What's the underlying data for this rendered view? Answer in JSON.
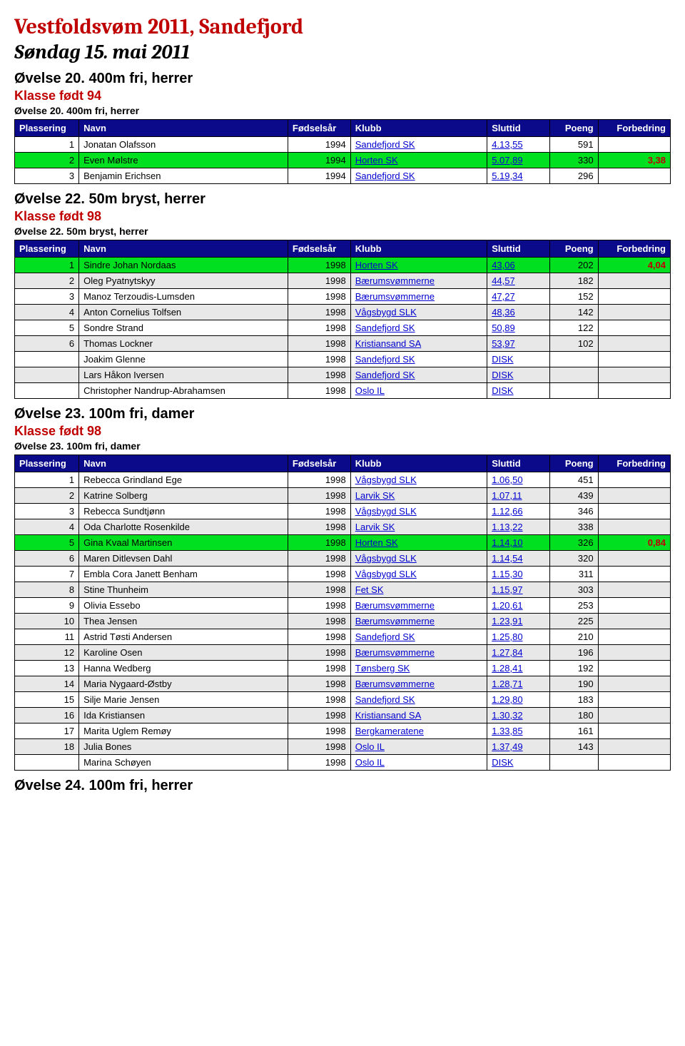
{
  "header": {
    "title": "Vestfoldsvøm 2011, Sandefjord",
    "date": "Søndag 15. mai 2011"
  },
  "columns": {
    "plass": "Plassering",
    "navn": "Navn",
    "year": "Fødselsår",
    "klubb": "Klubb",
    "tid": "Sluttid",
    "poeng": "Poeng",
    "forb": "Forbedring"
  },
  "sections": [
    {
      "event_big": "Øvelse 20. 400m fri, herrer",
      "klasse": "Klasse født 94",
      "event_small": "Øvelse 20. 400m fri, herrer",
      "rows": [
        {
          "plass": "1",
          "navn": "Jonatan Olafsson",
          "year": "1994",
          "klubb": "Sandefjord SK",
          "tid": "4.13,55",
          "poeng": "591",
          "forb": "",
          "hl": false
        },
        {
          "plass": "2",
          "navn": "Even Mølstre",
          "year": "1994",
          "klubb": "Horten SK",
          "tid": "5.07,89",
          "poeng": "330",
          "forb": "3,38",
          "hl": true
        },
        {
          "plass": "3",
          "navn": "Benjamin Erichsen",
          "year": "1994",
          "klubb": "Sandefjord SK",
          "tid": "5.19,34",
          "poeng": "296",
          "forb": "",
          "hl": false
        }
      ]
    },
    {
      "event_big": "Øvelse 22. 50m bryst, herrer",
      "klasse": "Klasse født 98",
      "event_small": "Øvelse 22. 50m bryst, herrer",
      "rows": [
        {
          "plass": "1",
          "navn": "Sindre Johan Nordaas",
          "year": "1998",
          "klubb": "Horten SK",
          "tid": "43,06",
          "poeng": "202",
          "forb": "4,04",
          "hl": true
        },
        {
          "plass": "2",
          "navn": "Oleg Pyatnytskyy",
          "year": "1998",
          "klubb": "Bærumsvømmerne",
          "tid": "44,57",
          "poeng": "182",
          "forb": "",
          "hl": false
        },
        {
          "plass": "3",
          "navn": "Manoz Terzoudis-Lumsden",
          "year": "1998",
          "klubb": "Bærumsvømmerne",
          "tid": "47,27",
          "poeng": "152",
          "forb": "",
          "hl": false
        },
        {
          "plass": "4",
          "navn": "Anton Cornelius Tolfsen",
          "year": "1998",
          "klubb": "Vågsbygd SLK",
          "tid": "48,36",
          "poeng": "142",
          "forb": "",
          "hl": false
        },
        {
          "plass": "5",
          "navn": "Sondre Strand",
          "year": "1998",
          "klubb": "Sandefjord SK",
          "tid": "50,89",
          "poeng": "122",
          "forb": "",
          "hl": false
        },
        {
          "plass": "6",
          "navn": "Thomas Lockner",
          "year": "1998",
          "klubb": "Kristiansand SA",
          "tid": "53,97",
          "poeng": "102",
          "forb": "",
          "hl": false
        },
        {
          "plass": "",
          "navn": "Joakim Glenne",
          "year": "1998",
          "klubb": "Sandefjord SK",
          "tid": "DISK",
          "poeng": "",
          "forb": "",
          "hl": false
        },
        {
          "plass": "",
          "navn": "Lars Håkon Iversen",
          "year": "1998",
          "klubb": "Sandefjord SK",
          "tid": "DISK",
          "poeng": "",
          "forb": "",
          "hl": false
        },
        {
          "plass": "",
          "navn": "Christopher Nandrup-Abrahamsen",
          "year": "1998",
          "klubb": "Oslo IL",
          "tid": "DISK",
          "poeng": "",
          "forb": "",
          "hl": false
        }
      ]
    },
    {
      "event_big": "Øvelse 23. 100m fri, damer",
      "klasse": "Klasse født 98",
      "event_small": "Øvelse 23. 100m fri, damer",
      "rows": [
        {
          "plass": "1",
          "navn": "Rebecca Grindland Ege",
          "year": "1998",
          "klubb": "Vågsbygd SLK",
          "tid": "1.06,50",
          "poeng": "451",
          "forb": "",
          "hl": false
        },
        {
          "plass": "2",
          "navn": "Katrine Solberg",
          "year": "1998",
          "klubb": "Larvik SK",
          "tid": "1.07,11",
          "poeng": "439",
          "forb": "",
          "hl": false
        },
        {
          "plass": "3",
          "navn": "Rebecca Sundtjønn",
          "year": "1998",
          "klubb": "Vågsbygd SLK",
          "tid": "1.12,66",
          "poeng": "346",
          "forb": "",
          "hl": false
        },
        {
          "plass": "4",
          "navn": "Oda Charlotte Rosenkilde",
          "year": "1998",
          "klubb": "Larvik SK",
          "tid": "1.13,22",
          "poeng": "338",
          "forb": "",
          "hl": false
        },
        {
          "plass": "5",
          "navn": "Gina Kvaal Martinsen",
          "year": "1998",
          "klubb": "Horten SK",
          "tid": "1.14,10",
          "poeng": "326",
          "forb": "0,84",
          "hl": true
        },
        {
          "plass": "6",
          "navn": "Maren Ditlevsen Dahl",
          "year": "1998",
          "klubb": "Vågsbygd SLK",
          "tid": "1.14,54",
          "poeng": "320",
          "forb": "",
          "hl": false
        },
        {
          "plass": "7",
          "navn": "Embla Cora Janett Benham",
          "year": "1998",
          "klubb": "Vågsbygd SLK",
          "tid": "1.15,30",
          "poeng": "311",
          "forb": "",
          "hl": false
        },
        {
          "plass": "8",
          "navn": "Stine Thunheim",
          "year": "1998",
          "klubb": "Fet SK",
          "tid": "1.15,97",
          "poeng": "303",
          "forb": "",
          "hl": false
        },
        {
          "plass": "9",
          "navn": "Olivia Essebo",
          "year": "1998",
          "klubb": "Bærumsvømmerne",
          "tid": "1.20,61",
          "poeng": "253",
          "forb": "",
          "hl": false
        },
        {
          "plass": "10",
          "navn": "Thea Jensen",
          "year": "1998",
          "klubb": "Bærumsvømmerne",
          "tid": "1.23,91",
          "poeng": "225",
          "forb": "",
          "hl": false
        },
        {
          "plass": "11",
          "navn": "Astrid Tøsti Andersen",
          "year": "1998",
          "klubb": "Sandefjord SK",
          "tid": "1.25,80",
          "poeng": "210",
          "forb": "",
          "hl": false
        },
        {
          "plass": "12",
          "navn": "Karoline Osen",
          "year": "1998",
          "klubb": "Bærumsvømmerne",
          "tid": "1.27,84",
          "poeng": "196",
          "forb": "",
          "hl": false
        },
        {
          "plass": "13",
          "navn": "Hanna Wedberg",
          "year": "1998",
          "klubb": "Tønsberg SK",
          "tid": "1.28,41",
          "poeng": "192",
          "forb": "",
          "hl": false
        },
        {
          "plass": "14",
          "navn": "Maria Nygaard-Østby",
          "year": "1998",
          "klubb": "Bærumsvømmerne",
          "tid": "1.28,71",
          "poeng": "190",
          "forb": "",
          "hl": false
        },
        {
          "plass": "15",
          "navn": "Silje Marie Jensen",
          "year": "1998",
          "klubb": "Sandefjord SK",
          "tid": "1.29,80",
          "poeng": "183",
          "forb": "",
          "hl": false
        },
        {
          "plass": "16",
          "navn": "Ida Kristiansen",
          "year": "1998",
          "klubb": "Kristiansand SA",
          "tid": "1.30,32",
          "poeng": "180",
          "forb": "",
          "hl": false
        },
        {
          "plass": "17",
          "navn": "Marita Uglem Remøy",
          "year": "1998",
          "klubb": "Bergkameratene",
          "tid": "1.33,85",
          "poeng": "161",
          "forb": "",
          "hl": false
        },
        {
          "plass": "18",
          "navn": "Julia Bones",
          "year": "1998",
          "klubb": "Oslo IL",
          "tid": "1.37,49",
          "poeng": "143",
          "forb": "",
          "hl": false
        },
        {
          "plass": "",
          "navn": "Marina Schøyen",
          "year": "1998",
          "klubb": "Oslo IL",
          "tid": "DISK",
          "poeng": "",
          "forb": "",
          "hl": false
        }
      ]
    }
  ],
  "footer_heading": "Øvelse 24. 100m fri, herrer",
  "colors": {
    "header_bg": "#0a0a8a",
    "highlight_bg": "#00e020",
    "alt_row_bg": "#e8e8e8",
    "title_red": "#c00000",
    "link_blue": "#0000d0"
  }
}
